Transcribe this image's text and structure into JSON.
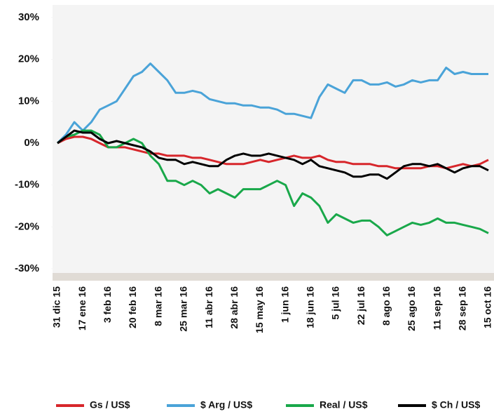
{
  "chart_data": {
    "type": "line",
    "categories": [
      "31 dic 15",
      null,
      null,
      "17 ene 16",
      null,
      null,
      "3 feb 16",
      null,
      null,
      "20 feb 16",
      null,
      null,
      "8 mar 16",
      null,
      null,
      "25 mar 16",
      null,
      null,
      "11 abr 16",
      null,
      null,
      "28 abr 16",
      null,
      null,
      "15 may 16",
      null,
      null,
      "1 jun 16",
      null,
      null,
      "18 jun 16",
      null,
      null,
      "5 jul 16",
      null,
      null,
      "22 jul 16",
      null,
      null,
      "8 ago 16",
      null,
      null,
      "25 ago 16",
      null,
      null,
      "11 sep 16",
      null,
      null,
      "28 sep 16",
      null,
      null,
      "15 oct 16"
    ],
    "series": [
      {
        "name": "Gs / US$",
        "color": "#d7262b",
        "values": [
          0,
          1,
          1.5,
          1.5,
          1,
          0,
          -1,
          -1,
          -1,
          -1.5,
          -2,
          -2.5,
          -2.5,
          -3,
          -3,
          -3,
          -3.5,
          -3.5,
          -4,
          -4.5,
          -5,
          -5,
          -5,
          -4.5,
          -4,
          -4.5,
          -4,
          -3.5,
          -3,
          -3.5,
          -3.5,
          -3,
          -4,
          -4.5,
          -4.5,
          -5,
          -5,
          -5,
          -5.5,
          -5.5,
          -6,
          -6,
          -6,
          -6,
          -5.5,
          -5.5,
          -6,
          -5.5,
          -5,
          -5.5,
          -5,
          -4
        ]
      },
      {
        "name": "$ Arg / US$",
        "color": "#4aa3d8",
        "values": [
          0,
          2,
          5,
          3,
          5,
          8,
          9,
          10,
          13,
          16,
          17,
          19,
          17,
          15,
          12,
          12,
          12.5,
          12,
          10.5,
          10,
          9.5,
          9.5,
          9,
          9,
          8.5,
          8.5,
          8,
          7,
          7,
          6.5,
          6,
          11,
          14,
          13,
          12,
          15,
          15,
          14,
          14,
          14.5,
          13.5,
          14,
          15,
          14.5,
          15,
          15,
          18,
          16.5,
          17,
          16.5,
          16.5,
          16.5
        ]
      },
      {
        "name": "Real / US$",
        "color": "#19a84a",
        "values": [
          0,
          1.5,
          2,
          3,
          3,
          2,
          -1,
          -1,
          0,
          1,
          0,
          -3,
          -5,
          -9,
          -9,
          -10,
          -9,
          -10,
          -12,
          -11,
          -12,
          -13,
          -11,
          -11,
          -11,
          -10,
          -9,
          -10,
          -15,
          -12,
          -13,
          -15,
          -19,
          -17,
          -18,
          -19,
          -18.5,
          -18.5,
          -20,
          -22,
          -21,
          -20,
          -19,
          -19.5,
          -19,
          -18,
          -19,
          -19,
          -19.5,
          -20,
          -20.5,
          -21.5
        ]
      },
      {
        "name": "$ Ch / US$",
        "color": "#000000",
        "values": [
          0,
          1.5,
          3,
          2.5,
          2.5,
          1,
          0,
          0.5,
          0,
          -0.5,
          -1,
          -2,
          -3.5,
          -4,
          -4,
          -5,
          -4.5,
          -5,
          -5.5,
          -5.5,
          -4,
          -3,
          -2.5,
          -3,
          -3,
          -2.5,
          -3,
          -3.5,
          -4,
          -5,
          -4,
          -5.5,
          -6,
          -6.5,
          -7,
          -8,
          -8,
          -7.5,
          -7.5,
          -8.5,
          -7,
          -5.5,
          -5,
          -5,
          -5.5,
          -5,
          -6,
          -7,
          -6,
          -5.5,
          -5.5,
          -6.5
        ]
      }
    ],
    "ylim": [
      -31,
      33
    ],
    "yticks": [
      {
        "value": 30,
        "label": "30%"
      },
      {
        "value": 20,
        "label": "20%"
      },
      {
        "value": 10,
        "label": "10%"
      },
      {
        "value": 0,
        "label": "0%"
      },
      {
        "value": -10,
        "label": "-10%"
      },
      {
        "value": -20,
        "label": "-20%"
      },
      {
        "value": -30,
        "label": "-30%"
      }
    ]
  }
}
